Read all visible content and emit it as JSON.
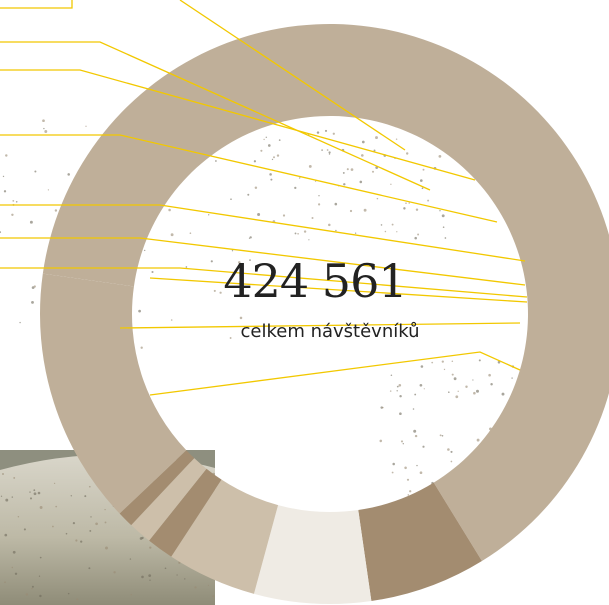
{
  "chart_data": {
    "type": "pie",
    "style": "donut",
    "center_value": "424 561",
    "center_label": "celkem návštěvníků",
    "total": 424561,
    "slices": [
      {
        "share": 0.64,
        "color": "#bfaf99"
      },
      {
        "share": 0.065,
        "color": "#a38c70"
      },
      {
        "share": 0.065,
        "color": "#efebe4"
      },
      {
        "share": 0.05,
        "color": "#cdbfaa"
      },
      {
        "share": 0.015,
        "color": "#a38c70"
      },
      {
        "share": 0.013,
        "color": "#cdbfaa"
      },
      {
        "share": 0.009,
        "color": "#a38c70"
      },
      {
        "share": 0.143,
        "color": "#bfaf99"
      }
    ],
    "leader_line_color": "#f2c800",
    "leader_lines": 11,
    "grid": false,
    "legend": "none"
  }
}
